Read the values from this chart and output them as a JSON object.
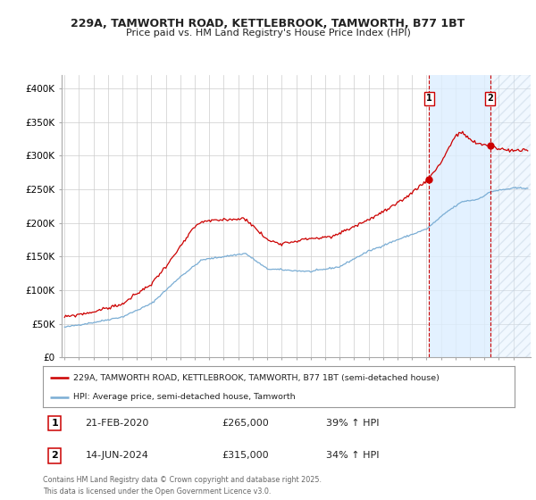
{
  "title1": "229A, TAMWORTH ROAD, KETTLEBROOK, TAMWORTH, B77 1BT",
  "title2": "Price paid vs. HM Land Registry's House Price Index (HPI)",
  "background_color": "#ffffff",
  "grid_color": "#cccccc",
  "plot_bg": "#ffffff",
  "red_color": "#cc0000",
  "blue_color": "#7aadd4",
  "shade_color": "#ddeeff",
  "sale1_date": "21-FEB-2020",
  "sale1_price": 265000,
  "sale1_hpi": "39% ↑ HPI",
  "sale2_date": "14-JUN-2024",
  "sale2_price": 315000,
  "sale2_hpi": "34% ↑ HPI",
  "legend1": "229A, TAMWORTH ROAD, KETTLEBROOK, TAMWORTH, B77 1BT (semi-detached house)",
  "legend2": "HPI: Average price, semi-detached house, Tamworth",
  "footer": "Contains HM Land Registry data © Crown copyright and database right 2025.\nThis data is licensed under the Open Government Licence v3.0.",
  "ylim": [
    0,
    420000
  ],
  "yticks": [
    0,
    50000,
    100000,
    150000,
    200000,
    250000,
    300000,
    350000,
    400000
  ],
  "ytick_labels": [
    "£0",
    "£50K",
    "£100K",
    "£150K",
    "£200K",
    "£250K",
    "£300K",
    "£350K",
    "£400K"
  ],
  "x_start_year": 1995,
  "x_end_year": 2027
}
